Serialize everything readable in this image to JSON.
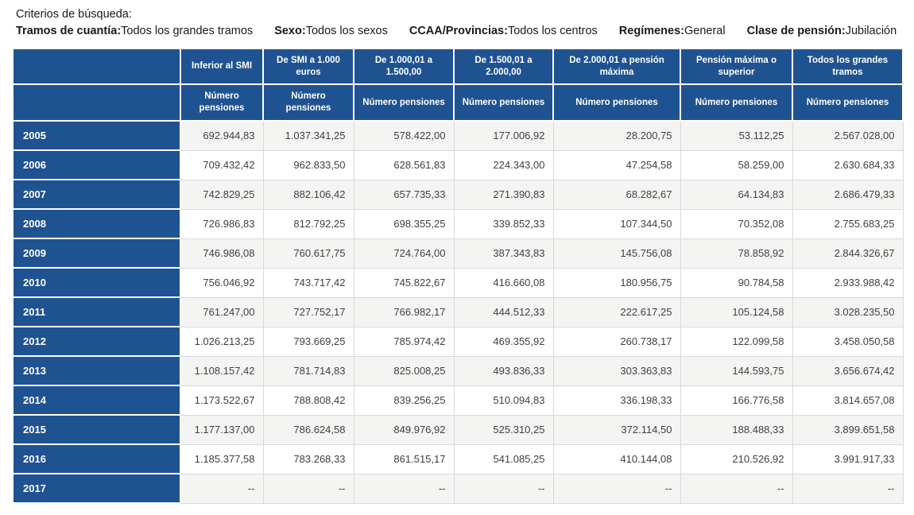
{
  "criteria": {
    "title": "Criterios de búsqueda:",
    "filters": [
      {
        "label": "Tramos de cuantía:",
        "value": "Todos los grandes tramos"
      },
      {
        "label": "Sexo:",
        "value": "Todos los sexos"
      },
      {
        "label": "CCAA/Provincias:",
        "value": "Todos los centros"
      },
      {
        "label": "Regímenes:",
        "value": "General"
      },
      {
        "label": "Clase de pensión:",
        "value": "Jubilación"
      }
    ]
  },
  "table": {
    "corner_label": "",
    "columns": [
      {
        "label": "Inferior al SMI",
        "subheader": "Número pensiones"
      },
      {
        "label": "De SMI a 1.000 euros",
        "subheader": "Número pensiones"
      },
      {
        "label": "De 1.000,01 a 1.500,00",
        "subheader": "Número pensiones"
      },
      {
        "label": "De 1.500,01 a 2.000,00",
        "subheader": "Número pensiones"
      },
      {
        "label": "De 2.000,01 a pensión máxima",
        "subheader": "Número pensiones"
      },
      {
        "label": "Pensión máxima o superior",
        "subheader": "Número pensiones"
      },
      {
        "label": "Todos los grandes tramos",
        "subheader": "Número pensiones"
      }
    ],
    "rows": [
      {
        "year": "2005",
        "values": [
          "692.944,83",
          "1.037.341,25",
          "578.422,00",
          "177.006,92",
          "28.200,75",
          "53.112,25",
          "2.567.028,00"
        ]
      },
      {
        "year": "2006",
        "values": [
          "709.432,42",
          "962.833,50",
          "628.561,83",
          "224.343,00",
          "47.254,58",
          "58.259,00",
          "2.630.684,33"
        ]
      },
      {
        "year": "2007",
        "values": [
          "742.829,25",
          "882.106,42",
          "657.735,33",
          "271.390,83",
          "68.282,67",
          "64.134,83",
          "2.686.479,33"
        ]
      },
      {
        "year": "2008",
        "values": [
          "726.986,83",
          "812.792,25",
          "698.355,25",
          "339.852,33",
          "107.344,50",
          "70.352,08",
          "2.755.683,25"
        ]
      },
      {
        "year": "2009",
        "values": [
          "746.986,08",
          "760.617,75",
          "724.764,00",
          "387.343,83",
          "145.756,08",
          "78.858,92",
          "2.844.326,67"
        ]
      },
      {
        "year": "2010",
        "values": [
          "756.046,92",
          "743.717,42",
          "745.822,67",
          "416.660,08",
          "180.956,75",
          "90.784,58",
          "2.933.988,42"
        ]
      },
      {
        "year": "2011",
        "values": [
          "761.247,00",
          "727.752,17",
          "766.982,17",
          "444.512,33",
          "222.617,25",
          "105.124,58",
          "3.028.235,50"
        ]
      },
      {
        "year": "2012",
        "values": [
          "1.026.213,25",
          "793.669,25",
          "785.974,42",
          "469.355,92",
          "260.738,17",
          "122.099,58",
          "3.458.050,58"
        ]
      },
      {
        "year": "2013",
        "values": [
          "1.108.157,42",
          "781.714,83",
          "825.008,25",
          "493.836,33",
          "303.363,83",
          "144.593,75",
          "3.656.674,42"
        ]
      },
      {
        "year": "2014",
        "values": [
          "1.173.522,67",
          "788.808,42",
          "839.256,25",
          "510.094,83",
          "336.198,33",
          "166.776,58",
          "3.814.657,08"
        ]
      },
      {
        "year": "2015",
        "values": [
          "1.177.137,00",
          "786.624,58",
          "849.976,92",
          "525.310,25",
          "372.114,50",
          "188.488,33",
          "3.899.651,58"
        ]
      },
      {
        "year": "2016",
        "values": [
          "1.185.377,58",
          "783.268,33",
          "861.515,17",
          "541.085,25",
          "410.144,08",
          "210.526,92",
          "3.991.917,33"
        ]
      },
      {
        "year": "2017",
        "values": [
          "--",
          "--",
          "--",
          "--",
          "--",
          "--",
          "--"
        ]
      }
    ]
  },
  "colors": {
    "header_blue": "#1F5291",
    "row_stripe": "#F4F4F3",
    "cell_border": "#D9D9D9",
    "value_text": "#404040"
  }
}
